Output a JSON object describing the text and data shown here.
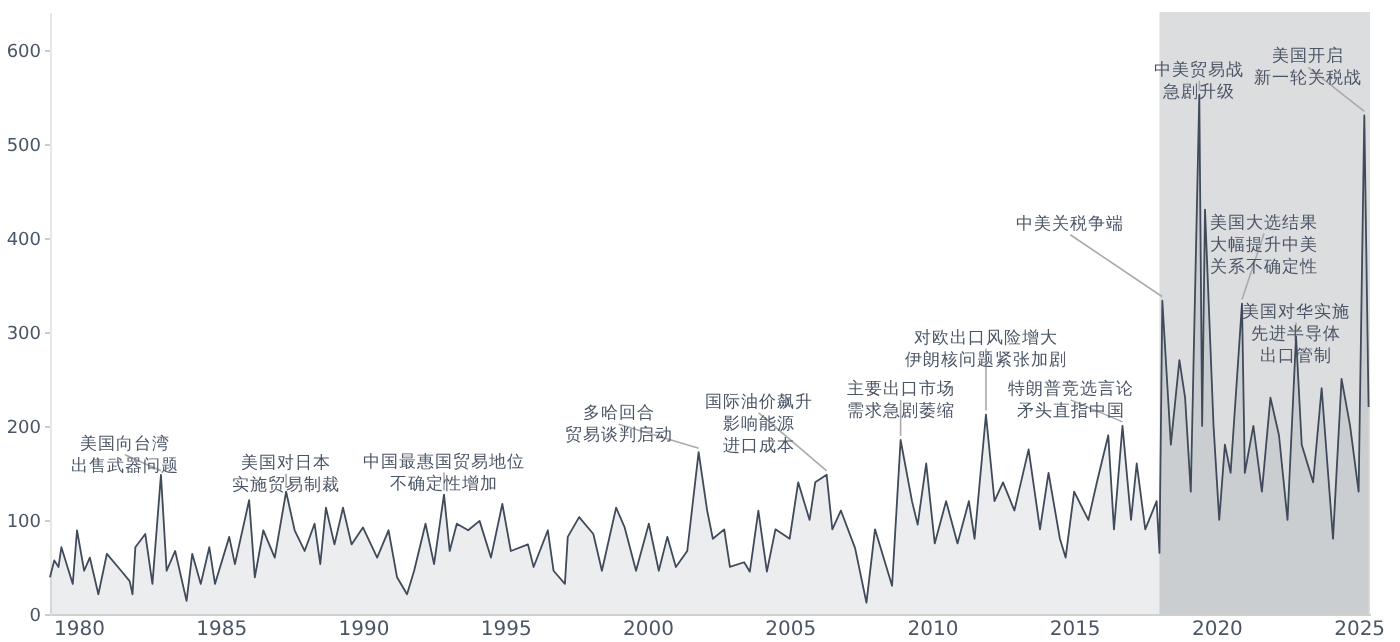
{
  "chart_data": {
    "type": "area",
    "xlim": [
      1979.0,
      2025.4
    ],
    "xticks": [
      1980,
      1985,
      1990,
      1995,
      2000,
      2005,
      2010,
      2015,
      2020,
      2025
    ],
    "ylim": [
      0,
      640
    ],
    "yticks": [
      0,
      100,
      200,
      300,
      400,
      500,
      600
    ],
    "grid": false,
    "series": [
      {
        "color": "#3f4a5a",
        "x": [
          1979.0,
          1979.15,
          1979.3,
          1979.4,
          1979.8,
          1979.95,
          1980.2,
          1980.4,
          1980.7,
          1981.0,
          1981.5,
          1981.8,
          1981.9,
          1982.0,
          1982.35,
          1982.6,
          1982.9,
          1983.1,
          1983.4,
          1983.8,
          1984.0,
          1984.3,
          1984.6,
          1984.8,
          1985.3,
          1985.5,
          1986.0,
          1986.2,
          1986.5,
          1986.9,
          1987.3,
          1987.6,
          1987.95,
          1988.3,
          1988.5,
          1988.7,
          1989.0,
          1989.3,
          1989.6,
          1990.0,
          1990.5,
          1990.9,
          1991.2,
          1991.55,
          1991.8,
          1992.2,
          1992.5,
          1992.85,
          1993.05,
          1993.3,
          1993.7,
          1994.1,
          1994.5,
          1994.9,
          1995.2,
          1995.8,
          1996.0,
          1996.5,
          1996.7,
          1997.1,
          1997.2,
          1997.6,
          1998.1,
          1998.4,
          1998.9,
          1999.2,
          1999.6,
          2000.05,
          2000.4,
          2000.7,
          2001.0,
          2001.4,
          2001.8,
          2002.1,
          2002.3,
          2002.7,
          2002.9,
          2003.4,
          2003.6,
          2003.9,
          2004.2,
          2004.5,
          2005.0,
          2005.3,
          2005.7,
          2005.9,
          2006.3,
          2006.5,
          2006.8,
          2007.3,
          2007.7,
          2008.0,
          2008.3,
          2008.6,
          2008.9,
          2009.3,
          2009.5,
          2009.8,
          2010.1,
          2010.5,
          2010.9,
          2011.3,
          2011.5,
          2011.9,
          2012.2,
          2012.5,
          2012.9,
          2013.4,
          2013.8,
          2014.1,
          2014.5,
          2014.7,
          2015.0,
          2015.5,
          2015.8,
          2016.2,
          2016.4,
          2016.7,
          2017.0,
          2017.2,
          2017.5,
          2017.9,
          2018.0,
          2018.1,
          2018.4,
          2018.7,
          2018.9,
          2019.1,
          2019.4,
          2019.5,
          2019.6,
          2019.9,
          2020.1,
          2020.3,
          2020.5,
          2020.7,
          2020.9,
          2021.0,
          2021.3,
          2021.6,
          2021.9,
          2022.2,
          2022.5,
          2022.8,
          2023.0,
          2023.4,
          2023.7,
          2024.1,
          2024.4,
          2024.7,
          2025.0,
          2025.2,
          2025.35
        ],
        "values": [
          39,
          57,
          50,
          71,
          32,
          89,
          46,
          60,
          21,
          64,
          46,
          35,
          21,
          71,
          85,
          32,
          148,
          46,
          67,
          14,
          64,
          32,
          71,
          32,
          82,
          53,
          121,
          39,
          89,
          60,
          130,
          89,
          67,
          96,
          53,
          113,
          74,
          113,
          74,
          92,
          60,
          89,
          39,
          21,
          46,
          96,
          53,
          127,
          67,
          96,
          89,
          99,
          60,
          117,
          67,
          74,
          50,
          89,
          46,
          32,
          82,
          103,
          85,
          46,
          113,
          92,
          46,
          96,
          46,
          82,
          50,
          67,
          172,
          110,
          80,
          90,
          50,
          55,
          45,
          110,
          45,
          90,
          80,
          140,
          100,
          140,
          148,
          90,
          110,
          70,
          12,
          90,
          60,
          30,
          185,
          120,
          95,
          160,
          75,
          120,
          75,
          120,
          80,
          212,
          120,
          140,
          110,
          175,
          90,
          150,
          80,
          60,
          130,
          100,
          140,
          190,
          90,
          200,
          100,
          160,
          90,
          120,
          65,
          333,
          180,
          270,
          230,
          130,
          552,
          200,
          430,
          200,
          100,
          180,
          150,
          240,
          330,
          150,
          200,
          130,
          230,
          190,
          100,
          295,
          180,
          140,
          240,
          80,
          250,
          200,
          130,
          530,
          220
        ]
      }
    ],
    "bands": [
      {
        "axis": "x",
        "from": 2018,
        "to": 2025.4,
        "color": "#dcdddf"
      }
    ],
    "annotations": [
      {
        "text": "美国向台湾出售武器问题",
        "x": 1982.9,
        "y": 148
      },
      {
        "text": "美国对日本实施贸易制裁",
        "x": 1987.3,
        "y": 130
      },
      {
        "text": "中国最惠国贸易地位不确定性增加",
        "x": 1992.85,
        "y": 127
      },
      {
        "text": "多哈回合贸易谈判启动",
        "x": 2001.8,
        "y": 172
      },
      {
        "text": "国际油价飙升影响能源进口成本",
        "x": 2006.3,
        "y": 148
      },
      {
        "text": "主要出口市场需求急剧萎缩",
        "x": 2008.9,
        "y": 185
      },
      {
        "text": "对欧出口风险增大伊朗核问题紧张加剧",
        "x": 2011.9,
        "y": 212
      },
      {
        "text": "特朗普竞选言论矛头直指中国",
        "x": 2016.7,
        "y": 200
      },
      {
        "text": "中美关税争端",
        "x": 2018.1,
        "y": 333
      },
      {
        "text": "中美贸易战急剧升级",
        "x": 2019.4,
        "y": 552
      },
      {
        "text": "美国大选结果大幅提升中美关系不确定性",
        "x": 2020.9,
        "y": 330
      },
      {
        "text": "美国对华实施先进半导体出口管制",
        "x": 2022.8,
        "y": 295
      },
      {
        "text": "美国开启新一轮关税战",
        "x": 2025.2,
        "y": 530
      }
    ]
  }
}
